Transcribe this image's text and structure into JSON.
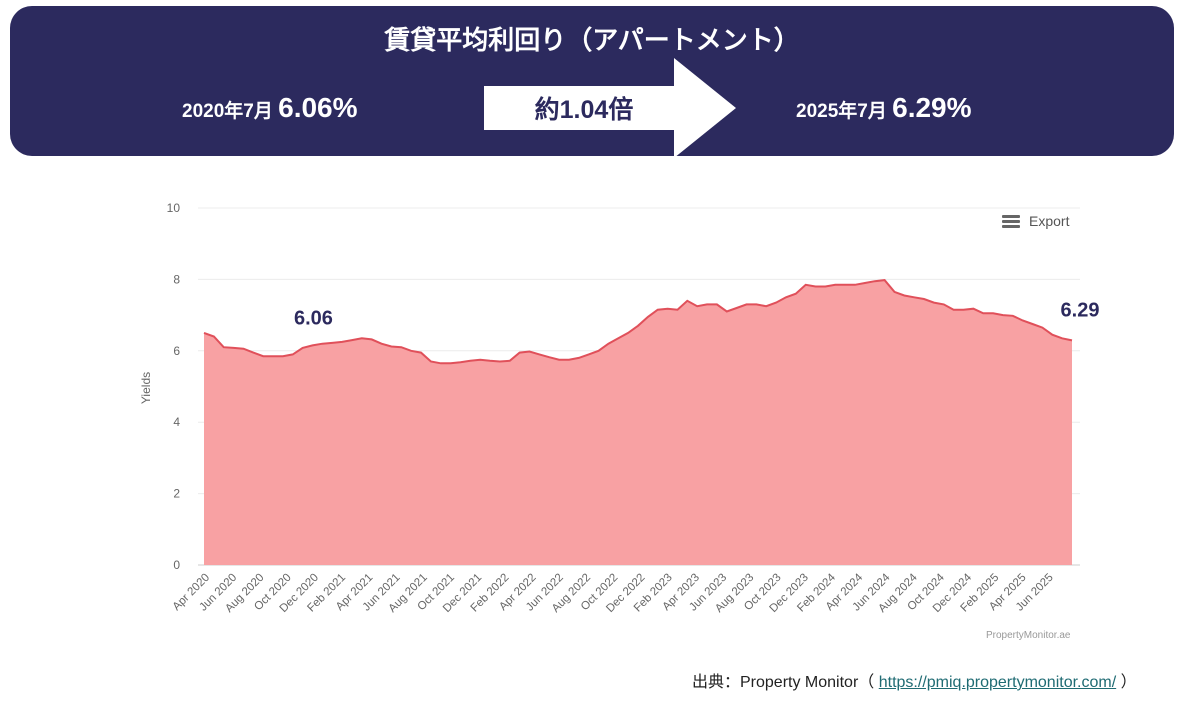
{
  "banner": {
    "title": "賃貸平均利回り（アパートメント）",
    "start_date": "2020年7月",
    "start_value": "6.06%",
    "ratio": "約1.04倍",
    "end_date": "2025年7月",
    "end_value": "6.29%",
    "bg_color": "#2c2a5e"
  },
  "export": {
    "label": "Export",
    "icon": "menu-icon"
  },
  "credit": "PropertyMonitor.ae",
  "source": {
    "prefix": "出典：Property Monitor（",
    "link": "https://pmiq.propertymonitor.com/",
    "suffix": "）"
  },
  "chart_data": {
    "type": "area",
    "ylabel": "Yields",
    "ylim": [
      0,
      10
    ],
    "yticks": [
      "0",
      "2",
      "4",
      "6",
      "8",
      "10"
    ],
    "fill_color": "#f8a1a3",
    "line_color": "#e0505a",
    "x_labels": [
      "Apr 2020",
      "Jun 2020",
      "Aug 2020",
      "Oct 2020",
      "Dec 2020",
      "Feb 2021",
      "Apr 2021",
      "Jun 2021",
      "Aug 2021",
      "Oct 2021",
      "Dec 2021",
      "Feb 2022",
      "Apr 2022",
      "Jun 2022",
      "Aug 2022",
      "Oct 2022",
      "Dec 2022",
      "Feb 2023",
      "Apr 2023",
      "Jun 2023",
      "Aug 2023",
      "Oct 2023",
      "Dec 2023",
      "Feb 2024",
      "Apr 2024",
      "Jun 2024",
      "Aug 2024",
      "Oct 2024",
      "Dec 2024",
      "Feb 2025",
      "Apr 2025",
      "Jun 2025"
    ],
    "values": [
      6.5,
      6.4,
      6.1,
      6.08,
      6.06,
      5.95,
      5.85,
      5.85,
      5.85,
      5.9,
      6.08,
      6.15,
      6.2,
      6.22,
      6.25,
      6.3,
      6.35,
      6.32,
      6.2,
      6.12,
      6.1,
      6.0,
      5.95,
      5.7,
      5.65,
      5.65,
      5.68,
      5.72,
      5.75,
      5.72,
      5.7,
      5.72,
      5.95,
      5.98,
      5.9,
      5.82,
      5.75,
      5.75,
      5.8,
      5.9,
      6.0,
      6.2,
      6.35,
      6.5,
      6.7,
      6.95,
      7.15,
      7.18,
      7.15,
      7.4,
      7.25,
      7.3,
      7.3,
      7.1,
      7.2,
      7.3,
      7.3,
      7.25,
      7.35,
      7.5,
      7.6,
      7.85,
      7.8,
      7.8,
      7.85,
      7.85,
      7.85,
      7.9,
      7.95,
      7.98,
      7.65,
      7.55,
      7.5,
      7.45,
      7.35,
      7.3,
      7.15,
      7.15,
      7.18,
      7.05,
      7.05,
      7.0,
      6.98,
      6.85,
      6.75,
      6.65,
      6.45,
      6.35,
      6.29
    ],
    "annotations": [
      {
        "label": "6.06",
        "at_index": 4
      },
      {
        "label": "6.29",
        "at_index": 88
      }
    ]
  }
}
